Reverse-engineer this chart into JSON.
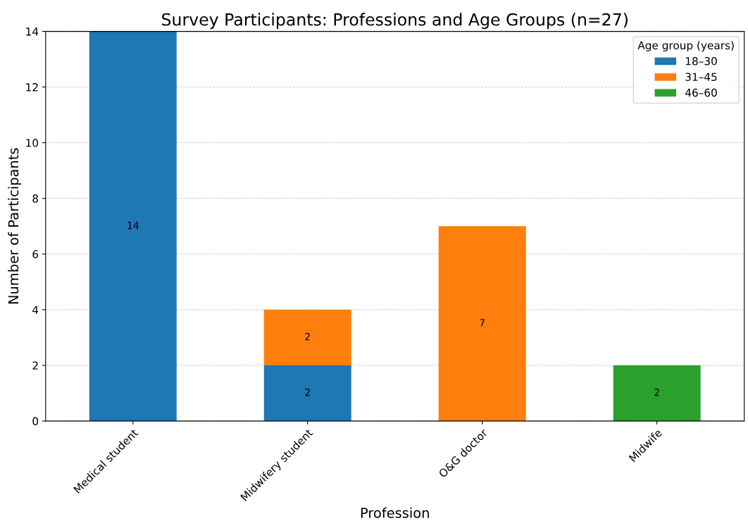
{
  "chart_data": {
    "type": "bar",
    "title": "Survey Participants: Professions and Age Groups (n=27)",
    "xlabel": "Profession",
    "ylabel": "Number of Participants",
    "legend_title": "Age group (years)",
    "categories": [
      "Medical student",
      "Midwifery student",
      "O&G doctor",
      "Midwife"
    ],
    "series": [
      {
        "name": "18–30",
        "color": "#1f77b4",
        "values": [
          14,
          2,
          0,
          0
        ],
        "value_labels": [
          "14",
          "2",
          null,
          null
        ]
      },
      {
        "name": "31–45",
        "color": "#ff7f0e",
        "values": [
          0,
          2,
          7,
          0
        ],
        "value_labels": [
          null,
          "2",
          "7",
          null
        ]
      },
      {
        "name": "46–60",
        "color": "#2ca02c",
        "values": [
          0,
          0,
          0,
          2
        ],
        "value_labels": [
          null,
          null,
          null,
          "2"
        ]
      }
    ],
    "stacked": true,
    "ylim": [
      0,
      14
    ],
    "yticks": [
      0,
      2,
      4,
      6,
      8,
      10,
      12,
      14
    ],
    "grid": "y",
    "legend": "top right"
  }
}
